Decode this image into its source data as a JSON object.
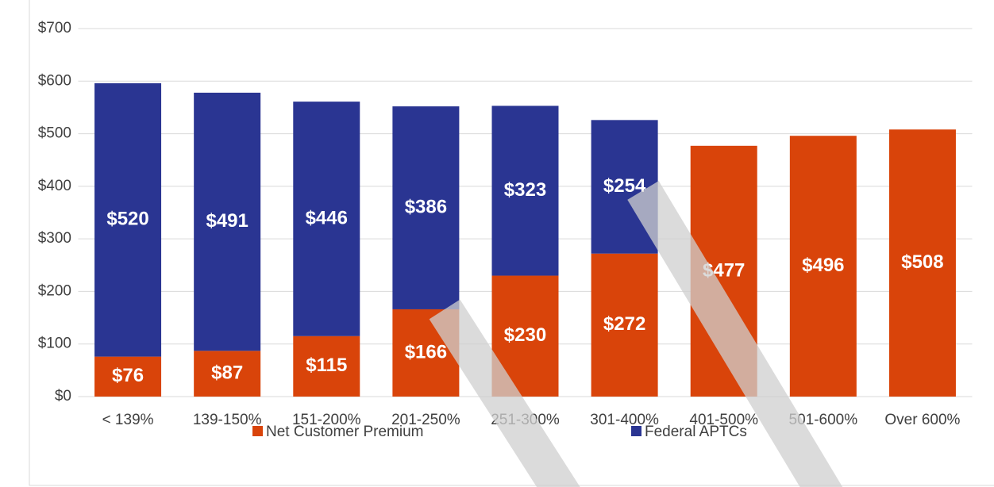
{
  "chart_data": {
    "type": "stacked_bar",
    "categories": [
      "< 139%",
      "139-150%",
      "151-200%",
      "201-250%",
      "251-300%",
      "301-400%",
      "401-500%",
      "501-600%",
      "Over 600%"
    ],
    "series": [
      {
        "name": "Net Customer Premium",
        "color": "#d9440a",
        "values": [
          76,
          87,
          115,
          166,
          230,
          272,
          477,
          496,
          508
        ],
        "value_labels": [
          "$76",
          "$87",
          "$115",
          "$166",
          "$230",
          "$272",
          "$477",
          "$496",
          "$508"
        ]
      },
      {
        "name": "Federal APTCs",
        "color": "#2a3592",
        "values": [
          520,
          491,
          446,
          386,
          323,
          254,
          null,
          null,
          null
        ],
        "value_labels": [
          "$520",
          "$491",
          "$446",
          "$386",
          "$323",
          "$254",
          null,
          null,
          null
        ]
      }
    ],
    "ylim": [
      0,
      700
    ],
    "yticks": [
      {
        "value": 0,
        "label": "$0"
      },
      {
        "value": 100,
        "label": "$100"
      },
      {
        "value": 200,
        "label": "$200"
      },
      {
        "value": 300,
        "label": "$300"
      },
      {
        "value": 400,
        "label": "$400"
      },
      {
        "value": 500,
        "label": "$500"
      },
      {
        "value": 600,
        "label": "$600"
      },
      {
        "value": 700,
        "label": "$700"
      }
    ],
    "grid": true,
    "legend": "bottom"
  }
}
